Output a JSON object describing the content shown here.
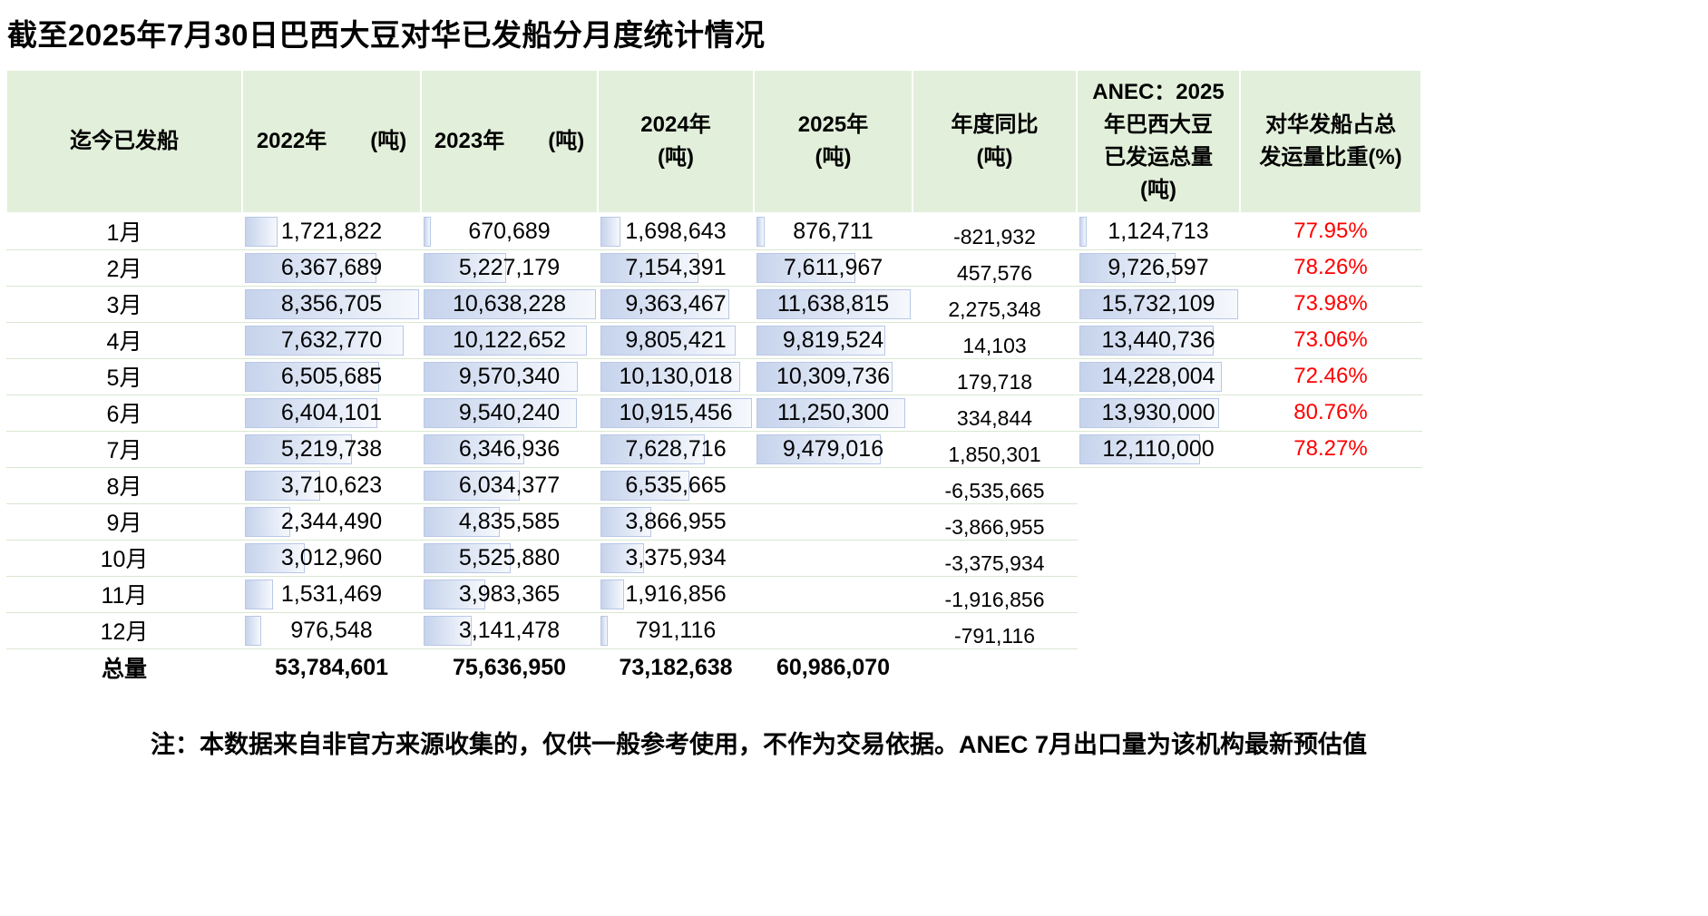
{
  "title": "截至2025年7月30日巴西大豆对华已发船分月度统计情况",
  "note": "注：本数据来自非官方来源收集的，仅供一般参考使用，不作为交易依据。ANEC 7月出口量为该机构最新预估值",
  "total_label": "总量",
  "header_lines": [
    [
      "迄今已发船"
    ],
    [
      "2022年　　(吨)"
    ],
    [
      "2023年　　(吨)"
    ],
    [
      "2024年",
      "(吨)"
    ],
    [
      "2025年",
      "(吨)"
    ],
    [
      "年度同比",
      "(吨)"
    ],
    [
      "ANEC：2025",
      "年巴西大豆",
      "已发运总量",
      "(吨)"
    ],
    [
      "对华发船占总",
      "发运量比重(%)"
    ]
  ],
  "colors": {
    "header_bg": "#e2efda",
    "grid_line": "#d9e7d0",
    "bar_fill": "#c6d3ec",
    "bar_border": "#b9c8e6",
    "percent_text": "#ff0000"
  },
  "chart_data": {
    "type": "table",
    "title": "截至2025年7月30日巴西大豆对华已发船分月度统计情况",
    "columns": [
      "迄今已发船",
      "2022年(吨)",
      "2023年(吨)",
      "2024年(吨)",
      "2025年(吨)",
      "年度同比(吨)",
      "ANEC：2025年巴西大豆已发运总量(吨)",
      "对华发船占总发运量比重(%)"
    ],
    "months": [
      "1月",
      "2月",
      "3月",
      "4月",
      "5月",
      "6月",
      "7月",
      "8月",
      "9月",
      "10月",
      "11月",
      "12月"
    ],
    "series": [
      {
        "name": "2022年(吨)",
        "values": [
          1721822,
          6367689,
          8356705,
          7632770,
          6505685,
          6404101,
          5219738,
          3710623,
          2344490,
          3012960,
          1531469,
          976548
        ]
      },
      {
        "name": "2023年(吨)",
        "values": [
          670689,
          5227179,
          10638228,
          10122652,
          9570340,
          9540240,
          6346936,
          6034377,
          4835585,
          5525880,
          3983365,
          3141478
        ]
      },
      {
        "name": "2024年(吨)",
        "values": [
          1698643,
          7154391,
          9363467,
          9805421,
          10130018,
          10915456,
          7628716,
          6535665,
          3866955,
          3375934,
          1916856,
          791116
        ]
      },
      {
        "name": "2025年(吨)",
        "values": [
          876711,
          7611967,
          11638815,
          9819524,
          10309736,
          11250300,
          9479016,
          null,
          null,
          null,
          null,
          null
        ]
      },
      {
        "name": "年度同比(吨)",
        "values": [
          -821932,
          457576,
          2275348,
          14103,
          179718,
          334844,
          1850301,
          -6535665,
          -3866955,
          -3375934,
          -1916856,
          -791116
        ]
      },
      {
        "name": "ANEC：2025年巴西大豆已发运总量(吨)",
        "values": [
          1124713,
          9726597,
          15732109,
          13440736,
          14228004,
          13930000,
          12110000,
          null,
          null,
          null,
          null,
          null
        ]
      },
      {
        "name": "对华发船占总发运量比重(%)",
        "values": [
          77.95,
          78.26,
          73.98,
          73.06,
          72.46,
          80.76,
          78.27,
          null,
          null,
          null,
          null,
          null
        ]
      }
    ],
    "totals": [
      53784601,
      75636950,
      73182638,
      60986070
    ],
    "legend_position": "none",
    "grid": true
  }
}
